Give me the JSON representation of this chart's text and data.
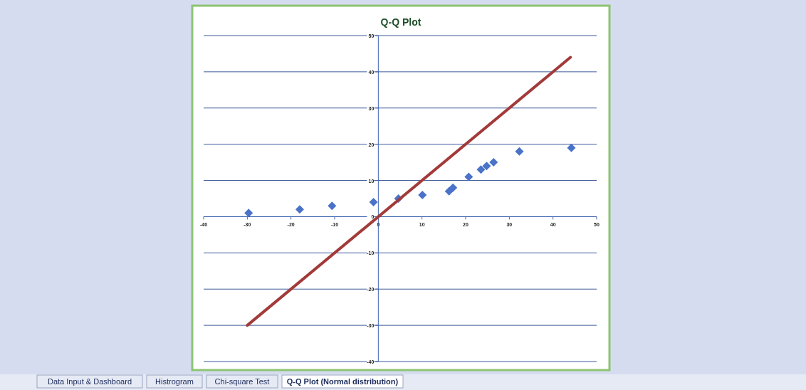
{
  "chart_data": {
    "type": "scatter",
    "title": "Q-Q Plot",
    "series": [
      {
        "color": "#4a72c8",
        "x": [
          -29.7,
          -18,
          -10.6,
          -1.1,
          4.6,
          10.1,
          16.2,
          17.1,
          20.7,
          23.5,
          24.8,
          26.4,
          32.3,
          44.2
        ],
        "values": [
          1,
          2,
          3,
          4,
          5,
          6,
          7,
          8,
          11,
          13,
          14,
          15,
          18,
          19
        ],
        "marker": "diamond"
      },
      {
        "type": "line",
        "color": "#a33a3a",
        "x": [
          -30,
          44
        ],
        "values": [
          -30,
          44
        ],
        "marker": "none",
        "line_style": "solid"
      }
    ],
    "xlim": [
      -40,
      50
    ],
    "xticks": [
      -40,
      -30,
      -20,
      -10,
      0,
      10,
      20,
      30,
      40,
      50
    ],
    "ylim": [
      -40,
      50
    ],
    "yticks": [
      -40,
      -30,
      -20,
      -10,
      0,
      10,
      20,
      30,
      40,
      50
    ],
    "grid": "y",
    "annotations": [
      "Data Input & Dashboard",
      "Histrogram",
      "Chi-square Test",
      "Q-Q Plot (Normal distribution)"
    ]
  }
}
